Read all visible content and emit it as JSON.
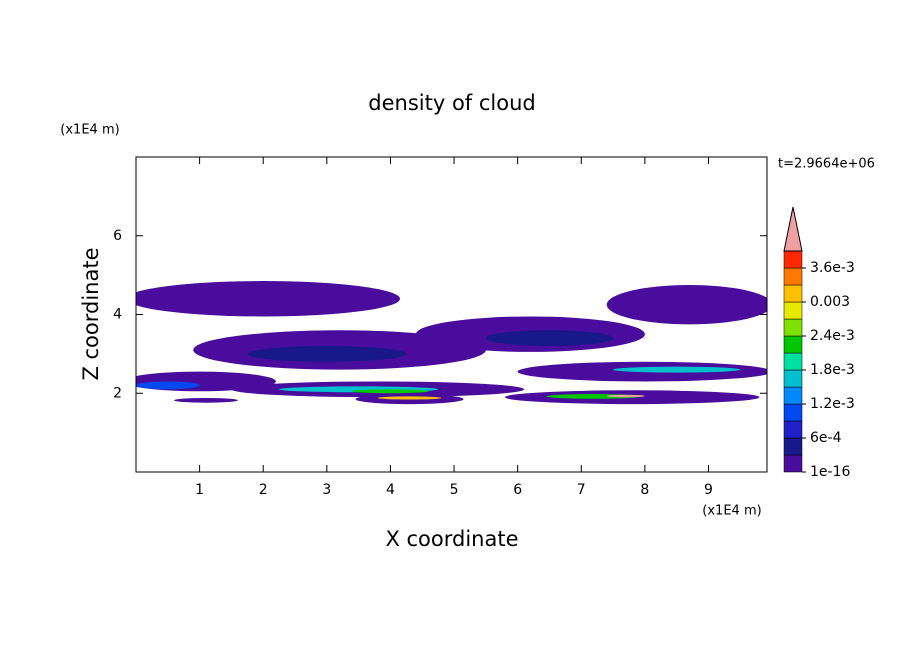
{
  "chart_data": {
    "type": "contour",
    "title": "density of cloud",
    "x_label": "X coordinate",
    "y_label": "Z coordinate",
    "x_unit": "(x1E4 m)",
    "y_unit": "(x1E4 m)",
    "time_label": "t=2.9664e+06",
    "xlim": [
      0,
      9.92
    ],
    "ylim": [
      0,
      8
    ],
    "xticks": [
      1,
      2,
      3,
      4,
      5,
      6,
      7,
      8,
      9
    ],
    "yticks": [
      2,
      4,
      6
    ],
    "colorbar": {
      "levels": [
        1e-16,
        0.0003,
        0.0006,
        0.0009,
        0.0012,
        0.0015,
        0.0018,
        0.0021,
        0.0024,
        0.0027,
        0.003,
        0.0033,
        0.0036,
        0.0039
      ],
      "colors": [
        "#4a0c9c",
        "#18188a",
        "#2020c8",
        "#0048f0",
        "#0088ff",
        "#00c0d0",
        "#00e0a0",
        "#00c800",
        "#80e000",
        "#e8e800",
        "#ffc000",
        "#ff7800",
        "#ff2800"
      ],
      "extend_color": "#f0a0a0",
      "ticks": [
        1e-16,
        {
          "value": 0.0006,
          "label": "6e-4"
        },
        {
          "value": 0.0012,
          "label": "1.2e-3"
        },
        {
          "value": 0.0018,
          "label": "1.8e-3"
        },
        {
          "value": 0.0024,
          "label": "2.4e-3"
        },
        0.003,
        {
          "value": 0.0036,
          "label": "3.6e-3"
        }
      ]
    },
    "regions": [
      {
        "x": 2.0,
        "z": 4.4,
        "w": 4.3,
        "h": 0.9,
        "level": 0.0001
      },
      {
        "x": 8.7,
        "z": 4.25,
        "w": 2.6,
        "h": 1.0,
        "level": 0.0001
      },
      {
        "x": 3.2,
        "z": 3.1,
        "w": 4.6,
        "h": 1.0,
        "level": 0.0001
      },
      {
        "x": 6.2,
        "z": 3.5,
        "w": 3.6,
        "h": 0.9,
        "level": 0.0001
      },
      {
        "x": 1.0,
        "z": 2.3,
        "w": 2.4,
        "h": 0.5,
        "level": 0.0001
      },
      {
        "x": 3.8,
        "z": 2.1,
        "w": 4.6,
        "h": 0.4,
        "level": 0.0001
      },
      {
        "x": 8.0,
        "z": 2.55,
        "w": 4.0,
        "h": 0.5,
        "level": 0.0001
      },
      {
        "x": 4.3,
        "z": 1.85,
        "w": 1.7,
        "h": 0.25,
        "level": 0.0001
      },
      {
        "x": 1.1,
        "z": 1.82,
        "w": 1.0,
        "h": 0.12,
        "level": 0.0001
      },
      {
        "x": 7.8,
        "z": 1.9,
        "w": 4.0,
        "h": 0.35,
        "level": 0.0001
      },
      {
        "x": 3.0,
        "z": 3.0,
        "w": 2.5,
        "h": 0.4,
        "level": 0.0004
      },
      {
        "x": 6.5,
        "z": 3.4,
        "w": 2.0,
        "h": 0.4,
        "level": 0.0004
      },
      {
        "x": 0.5,
        "z": 2.2,
        "w": 1.0,
        "h": 0.2,
        "level": 0.001
      },
      {
        "x": 3.5,
        "z": 2.1,
        "w": 2.5,
        "h": 0.15,
        "level": 0.0017
      },
      {
        "x": 8.5,
        "z": 2.6,
        "w": 2.0,
        "h": 0.15,
        "level": 0.0017
      },
      {
        "x": 4.0,
        "z": 2.05,
        "w": 1.2,
        "h": 0.1,
        "level": 0.0022
      },
      {
        "x": 7.2,
        "z": 1.92,
        "w": 1.5,
        "h": 0.12,
        "level": 0.0022
      },
      {
        "x": 4.3,
        "z": 1.88,
        "w": 1.0,
        "h": 0.08,
        "level": 0.0032
      },
      {
        "x": 7.7,
        "z": 1.93,
        "w": 0.6,
        "h": 0.06,
        "level": 0.004
      }
    ]
  }
}
